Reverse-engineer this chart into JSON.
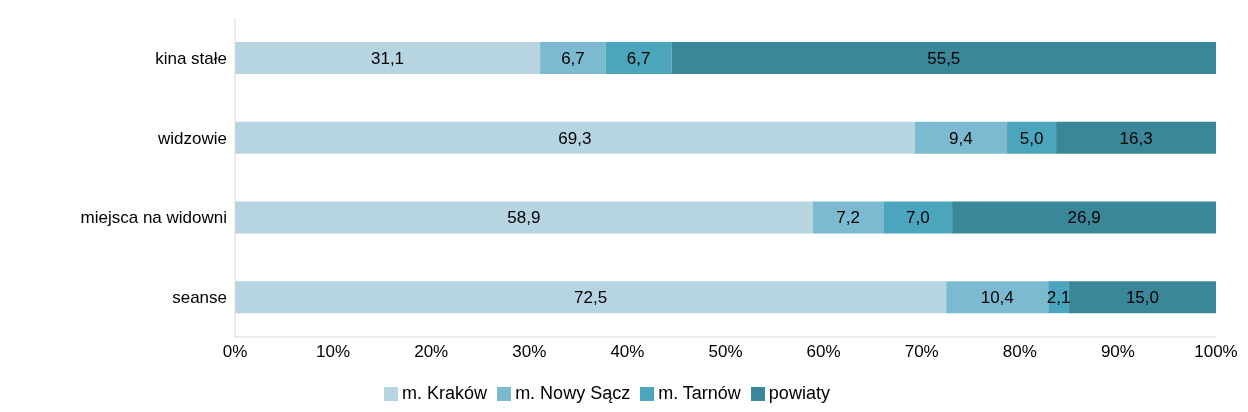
{
  "chart_data": {
    "type": "bar",
    "orientation": "horizontal",
    "stacked": true,
    "categories": [
      "kina stałe",
      "widzowie",
      "miejsca na widowni",
      "seanse"
    ],
    "series": [
      {
        "name": "m. Kraków",
        "color": "#b6d5e0",
        "values": [
          31.1,
          69.3,
          58.9,
          72.5
        ],
        "value_labels": [
          "31,1",
          "69,3",
          "58,9",
          "72,5"
        ]
      },
      {
        "name": "m. Nowy Sącz",
        "color": "#7bbad0",
        "values": [
          6.7,
          9.4,
          7.2,
          10.4
        ],
        "value_labels": [
          "6,7",
          "9,4",
          "7,2",
          "10,4"
        ]
      },
      {
        "name": "m. Tarnów",
        "color": "#4ba5bc",
        "values": [
          6.7,
          5.0,
          7.0,
          2.1
        ],
        "value_labels": [
          "6,7",
          "5,0",
          "7,0",
          "2,1"
        ]
      },
      {
        "name": "powiaty",
        "color": "#3a8799",
        "values": [
          55.5,
          16.3,
          26.9,
          15.0
        ],
        "value_labels": [
          "55,5",
          "16,3",
          "26,9",
          "15,0"
        ]
      }
    ],
    "xlim": [
      0,
      100
    ],
    "xticks": [
      {
        "value": 0,
        "label": "0%"
      },
      {
        "value": 10,
        "label": "10%"
      },
      {
        "value": 20,
        "label": "20%"
      },
      {
        "value": 30,
        "label": "30%"
      },
      {
        "value": 40,
        "label": "40%"
      },
      {
        "value": 50,
        "label": "50%"
      },
      {
        "value": 60,
        "label": "60%"
      },
      {
        "value": 70,
        "label": "70%"
      },
      {
        "value": 80,
        "label": "80%"
      },
      {
        "value": 90,
        "label": "90%"
      },
      {
        "value": 100,
        "label": "100%"
      }
    ],
    "legend": "bottom",
    "grid": false
  }
}
